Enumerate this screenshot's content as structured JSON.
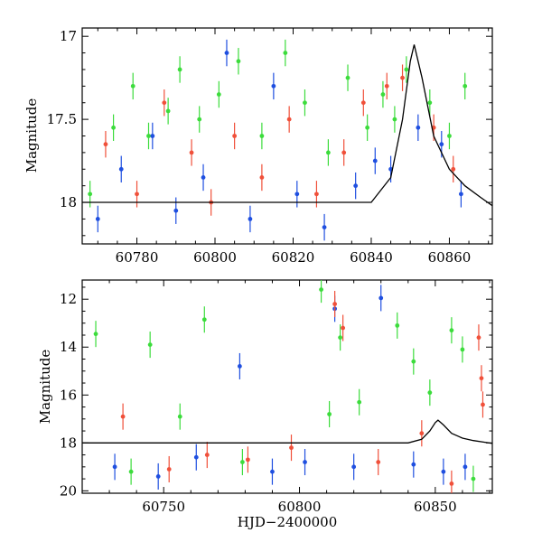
{
  "chart_data": [
    {
      "type": "scatter",
      "panel": "top",
      "ylabel": "Magnitude",
      "xlabel": "",
      "xlim": [
        60766,
        60871
      ],
      "ylim": [
        18.25,
        16.95
      ],
      "y_inverted": true,
      "xticks": [
        60780,
        60800,
        60820,
        60840,
        60860
      ],
      "xtick_labels": [
        "60780",
        "60800",
        "60820",
        "60840",
        "60860"
      ],
      "yticks": [
        17,
        17.5,
        18
      ],
      "ytick_labels": [
        "17",
        "17.5",
        "18"
      ],
      "grid": false,
      "series": [
        {
          "color": "#3cdc3c",
          "x": [
            60768,
            60774,
            60779,
            60783,
            60788,
            60791,
            60796,
            60801,
            60806,
            60812,
            60818,
            60823,
            60829,
            60834,
            60839,
            60843,
            60846,
            60849,
            60855,
            60860,
            60864
          ],
          "y": [
            17.95,
            17.55,
            17.3,
            17.6,
            17.45,
            17.2,
            17.5,
            17.35,
            17.15,
            17.6,
            17.1,
            17.4,
            17.7,
            17.25,
            17.55,
            17.35,
            17.5,
            17.2,
            17.4,
            17.6,
            17.3
          ]
        },
        {
          "color": "#1f4fe0",
          "x": [
            60770,
            60776,
            60784,
            60790,
            60797,
            60803,
            60809,
            60815,
            60821,
            60828,
            60836,
            60841,
            60845,
            60852,
            60858,
            60863
          ],
          "y": [
            18.1,
            17.8,
            17.6,
            18.05,
            17.85,
            17.1,
            18.1,
            17.3,
            17.95,
            18.15,
            17.9,
            17.75,
            17.8,
            17.55,
            17.65,
            17.95
          ]
        },
        {
          "color": "#f0503a",
          "x": [
            60772,
            60780,
            60787,
            60794,
            60799,
            60805,
            60812,
            60819,
            60826,
            60833,
            60838,
            60844,
            60848,
            60856,
            60861
          ],
          "y": [
            17.65,
            17.95,
            17.4,
            17.7,
            18.0,
            17.6,
            17.85,
            17.5,
            17.95,
            17.7,
            17.4,
            17.3,
            17.25,
            17.55,
            17.8
          ]
        }
      ],
      "model_curve": {
        "color": "#000000",
        "x": [
          60766,
          60840,
          60845,
          60848,
          60850,
          60851,
          60853,
          60856,
          60860,
          60864,
          60868,
          60871
        ],
        "y": [
          18.0,
          18.0,
          17.85,
          17.5,
          17.15,
          17.05,
          17.25,
          17.6,
          17.8,
          17.9,
          17.97,
          18.02
        ]
      }
    },
    {
      "type": "scatter",
      "panel": "bottom",
      "ylabel": "Magnitude",
      "xlabel": "HJD−2400000",
      "xlim": [
        60720,
        60871
      ],
      "ylim": [
        20.1,
        11.2
      ],
      "y_inverted": true,
      "xticks": [
        60750,
        60800,
        60850
      ],
      "xtick_labels": [
        "60750",
        "60800",
        "60850"
      ],
      "yticks": [
        12,
        14,
        16,
        18,
        20
      ],
      "ytick_labels": [
        "12",
        "14",
        "16",
        "18",
        "20"
      ],
      "grid": false,
      "series": [
        {
          "color": "#3cdc3c",
          "x": [
            60725,
            60738,
            60745,
            60756,
            60765,
            60779,
            60808,
            60811,
            60815,
            60822,
            60836,
            60842,
            60848,
            60856,
            60860,
            60864
          ],
          "y": [
            13.45,
            19.2,
            13.9,
            16.9,
            12.85,
            18.8,
            11.6,
            16.8,
            13.6,
            16.3,
            13.1,
            14.6,
            15.9,
            13.3,
            14.1,
            19.5
          ]
        },
        {
          "color": "#1f4fe0",
          "x": [
            60732,
            60748,
            60762,
            60778,
            60790,
            60802,
            60813,
            60820,
            60830,
            60842,
            60853,
            60861
          ],
          "y": [
            19.0,
            19.4,
            18.6,
            14.8,
            19.2,
            18.8,
            12.4,
            19.0,
            11.95,
            18.9,
            19.2,
            19.0
          ]
        },
        {
          "color": "#f0503a",
          "x": [
            60735,
            60752,
            60766,
            60781,
            60797,
            60813,
            60816,
            60829,
            60845,
            60856,
            60866,
            60867,
            60867.5
          ],
          "y": [
            16.9,
            19.1,
            18.5,
            18.7,
            18.2,
            12.2,
            13.2,
            18.8,
            17.6,
            19.7,
            13.6,
            15.3,
            16.4
          ]
        }
      ],
      "model_curve": {
        "color": "#000000",
        "x": [
          60720,
          60840,
          60845,
          60848,
          60850,
          60851,
          60853,
          60856,
          60860,
          60864,
          60868,
          60871
        ],
        "y": [
          18.0,
          18.0,
          17.85,
          17.5,
          17.15,
          17.05,
          17.25,
          17.6,
          17.8,
          17.9,
          17.97,
          18.02
        ]
      }
    }
  ]
}
